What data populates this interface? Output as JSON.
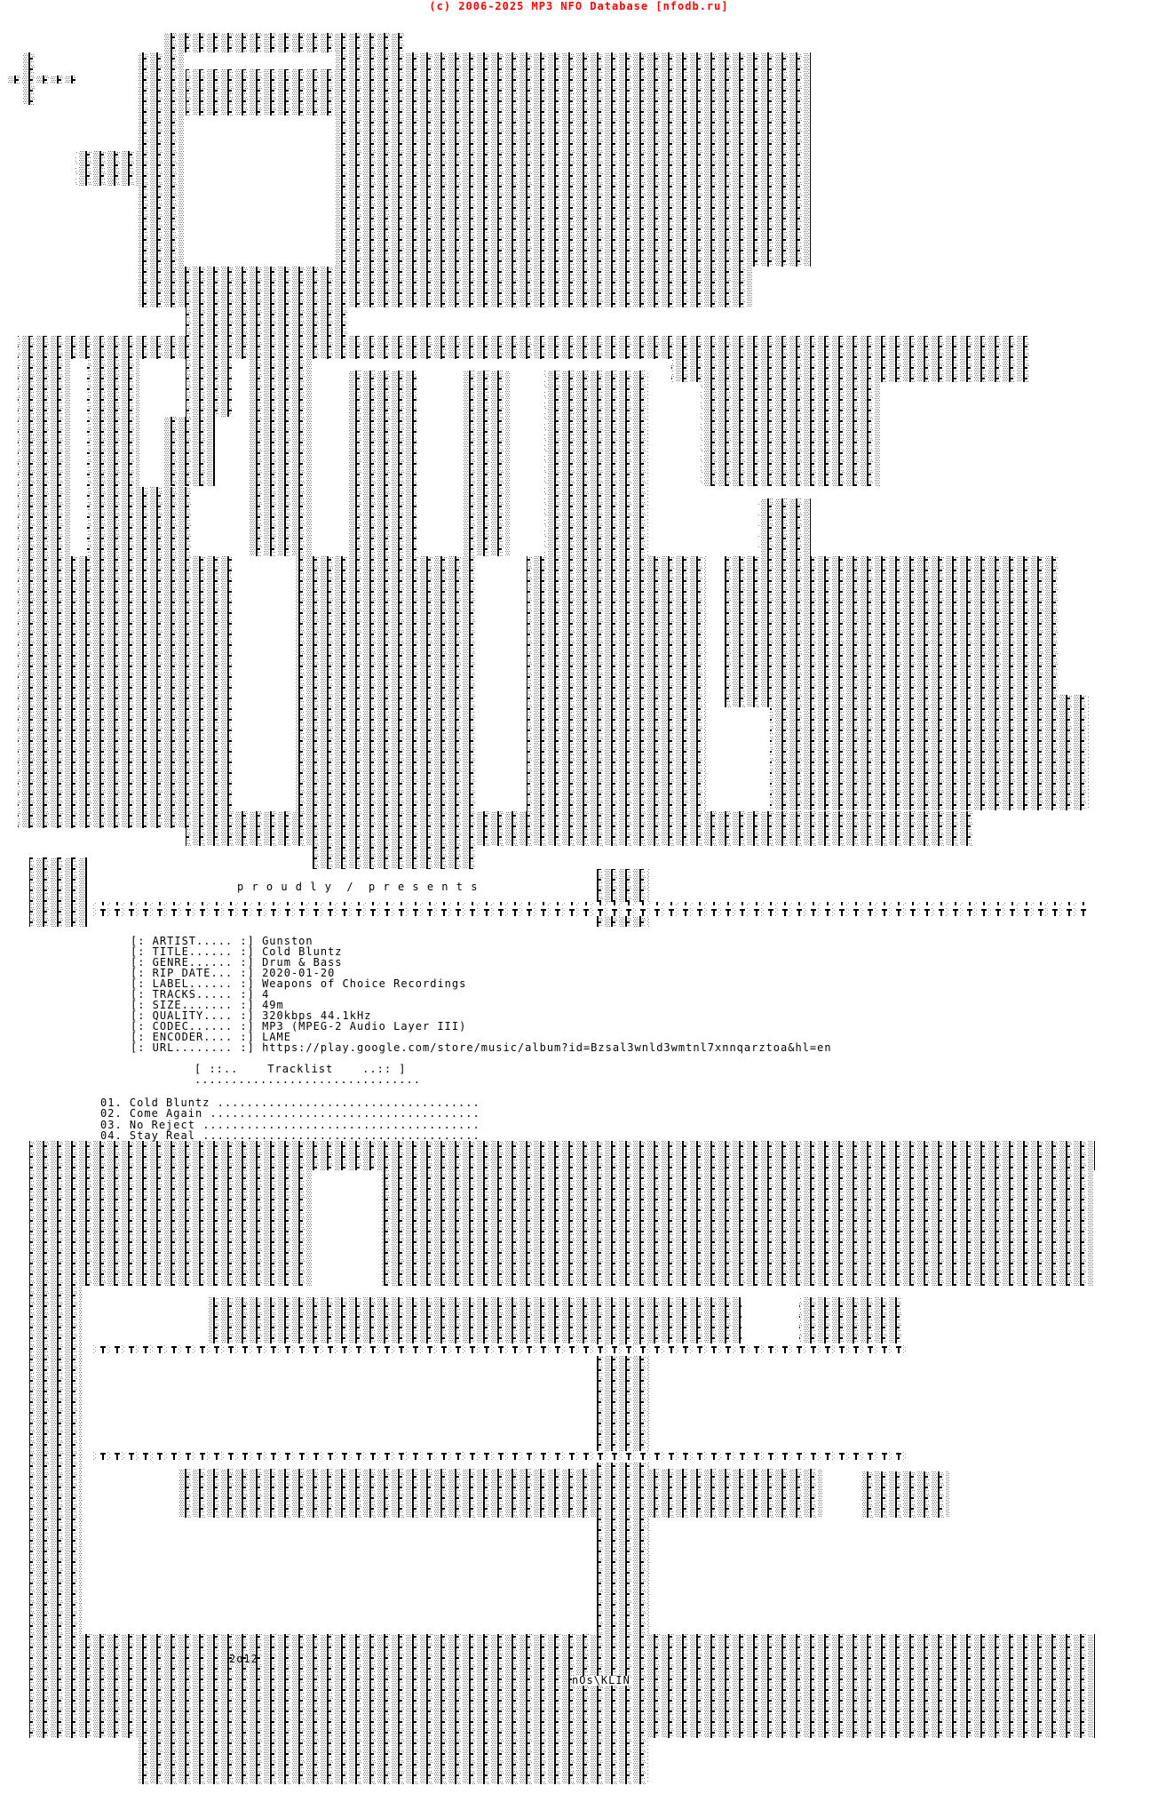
{
  "header": {
    "text": "(c) 2006-2025 MP3 NFO Database [nfodb.ru]",
    "color": "#ff0000"
  },
  "tagline": "p r o u d l y  /  p r e s e n t s",
  "info": [
    {
      "label": "[: ARTIST..... :]",
      "value": "Gunston"
    },
    {
      "label": "[: TITLE...... :]",
      "value": "Cold Bluntz"
    },
    {
      "label": "[: GENRE...... :]",
      "value": "Drum & Bass"
    },
    {
      "label": "[: RIP DATE... :]",
      "value": "2020-01-20"
    },
    {
      "label": "[: LABEL...... :]",
      "value": "Weapons of Choice Recordings"
    },
    {
      "label": "[: TRACKS..... :]",
      "value": "4"
    },
    {
      "label": "[: SIZE....... :]",
      "value": "49m"
    },
    {
      "label": "[: QUALITY.... :]",
      "value": "320kbps 44.1kHz"
    },
    {
      "label": "[: CODEC...... :]",
      "value": "MP3 (MPEG-2 Audio Layer III)"
    },
    {
      "label": "[: ENCODER.... :]",
      "value": "LAME"
    },
    {
      "label": "[: URL........ :]",
      "value": "https://play.google.com/store/music/album?id=Bzsal3wnld3wmtnl7xnnqarztoa&hl=en"
    }
  ],
  "tracklist": {
    "title": "[ ::..    Tracklist    ..:: ]",
    "underline": "...............................",
    "tracks": [
      {
        "num": "01.",
        "name": "Cold Bluntz",
        "dots": "...................................."
      },
      {
        "num": "02.",
        "name": "Come Again",
        "dots": "....................................."
      },
      {
        "num": "03.",
        "name": "No Reject",
        "dots": "......................................"
      },
      {
        "num": "04.",
        "name": "Stay Real",
        "dots": "......................................"
      }
    ]
  },
  "signature": {
    "year": "2o12",
    "artist": "nOs\\KLIN"
  },
  "colors": {
    "ink": "#000000",
    "shade": "#9a9a9a",
    "background": "#ffffff"
  }
}
